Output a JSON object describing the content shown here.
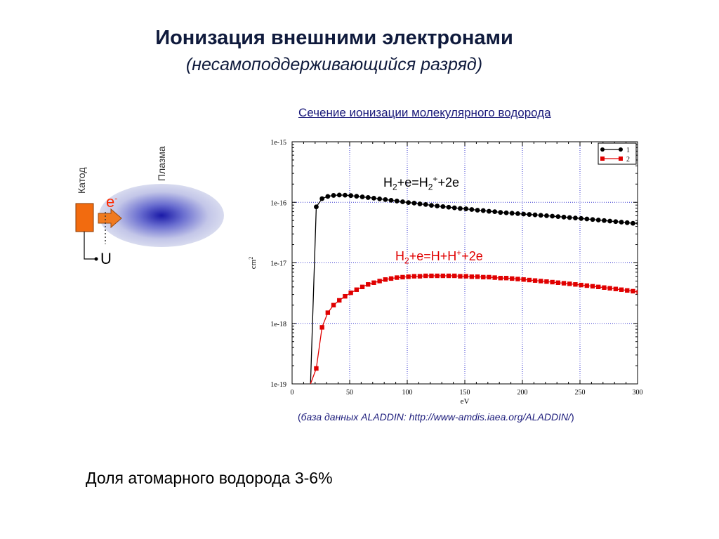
{
  "page": {
    "title": "Ионизация внешними электронами",
    "subtitle": "(несамоподдерживающийся разряд)",
    "conclusion": "Доля атомарного водорода 3-6%"
  },
  "diagram": {
    "cathode_label": "Катод",
    "plasma_label": "Плазма",
    "electron_label": "e",
    "electron_charge": "-",
    "voltage_label": "U",
    "colors": {
      "cathode": "#f26b0f",
      "plasma_center": "#1a1aa8",
      "plasma_edge": "#d4d6ec",
      "electron_text": "#ff2a00"
    }
  },
  "source": {
    "open": "(",
    "text": "база данных ALADDIN: http://www-amdis.iaea.org/ALADDIN/",
    "close": ")"
  },
  "chart_data": {
    "type": "scatter",
    "title": "Сечение ионизации молекулярного водорода",
    "xlabel": "eV",
    "ylabel": "cm",
    "ylabel_sup": "2",
    "xlim": [
      0,
      300
    ],
    "ylim": [
      1e-19,
      1e-15
    ],
    "yscale": "log",
    "grid": true,
    "legend_position": "top-right",
    "x_ticks": [
      "0",
      "50",
      "100",
      "150",
      "200",
      "250",
      "300"
    ],
    "y_ticks": [
      "1e-19",
      "1e-18",
      "1e-17",
      "1e-16",
      "1e-15"
    ],
    "reaction_labels": {
      "s1": {
        "a": "H",
        "b": "2",
        "c": "+e=H",
        "d": "2",
        "e": "+",
        "f": "+2e"
      },
      "s2": {
        "a": "H",
        "b": "2",
        "c": "+e=H+H",
        "e": "+",
        "f": "+2e"
      }
    },
    "series": [
      {
        "name": "1",
        "color": "#000000",
        "marker": "circle",
        "x": [
          16,
          21,
          26,
          31,
          36,
          41,
          46,
          51,
          56,
          61,
          66,
          71,
          76,
          81,
          86,
          91,
          96,
          101,
          106,
          111,
          116,
          121,
          126,
          131,
          136,
          141,
          146,
          151,
          156,
          161,
          166,
          171,
          176,
          181,
          186,
          191,
          196,
          201,
          206,
          211,
          216,
          221,
          226,
          231,
          236,
          241,
          246,
          251,
          256,
          261,
          266,
          271,
          276,
          281,
          286,
          291,
          296,
          301
        ],
        "y": [
          1e-19,
          8.4e-17,
          1.15e-16,
          1.25e-16,
          1.3e-16,
          1.32e-16,
          1.31e-16,
          1.29e-16,
          1.26e-16,
          1.23e-16,
          1.2e-16,
          1.17e-16,
          1.14e-16,
          1.11e-16,
          1.08e-16,
          1.05e-16,
          1.02e-16,
          9.9e-17,
          9.7e-17,
          9.4e-17,
          9.2e-17,
          8.9e-17,
          8.7e-17,
          8.5e-17,
          8.3e-17,
          8.1e-17,
          7.9e-17,
          7.8e-17,
          7.6e-17,
          7.4e-17,
          7.3e-17,
          7.1e-17,
          7e-17,
          6.8e-17,
          6.7e-17,
          6.6e-17,
          6.5e-17,
          6.4e-17,
          6.3e-17,
          6.2e-17,
          6.1e-17,
          6e-17,
          5.9e-17,
          5.8e-17,
          5.7e-17,
          5.6e-17,
          5.5e-17,
          5.4e-17,
          5.3e-17,
          5.2e-17,
          5.1e-17,
          5e-17,
          4.9e-17,
          4.8e-17,
          4.7e-17,
          4.6e-17,
          4.5e-17,
          4.5e-17
        ]
      },
      {
        "name": "2",
        "color": "#e00000",
        "marker": "square",
        "x": [
          16,
          21,
          26,
          31,
          36,
          41,
          46,
          51,
          56,
          61,
          66,
          71,
          76,
          81,
          86,
          91,
          96,
          101,
          106,
          111,
          116,
          121,
          126,
          131,
          136,
          141,
          146,
          151,
          156,
          161,
          166,
          171,
          176,
          181,
          186,
          191,
          196,
          201,
          206,
          211,
          216,
          221,
          226,
          231,
          236,
          241,
          246,
          251,
          256,
          261,
          266,
          271,
          276,
          281,
          286,
          291,
          296,
          301
        ],
        "y": [
          1e-19,
          1.8e-19,
          8.6e-19,
          1.5e-18,
          2e-18,
          2.4e-18,
          2.8e-18,
          3.2e-18,
          3.6e-18,
          4e-18,
          4.4e-18,
          4.7e-18,
          5e-18,
          5.3e-18,
          5.5e-18,
          5.7e-18,
          5.8e-18,
          5.9e-18,
          6e-18,
          6e-18,
          6.1e-18,
          6.1e-18,
          6.1e-18,
          6.1e-18,
          6.1e-18,
          6.1e-18,
          6e-18,
          6e-18,
          5.9e-18,
          5.9e-18,
          5.8e-18,
          5.8e-18,
          5.7e-18,
          5.6e-18,
          5.6e-18,
          5.5e-18,
          5.4e-18,
          5.3e-18,
          5.2e-18,
          5.1e-18,
          5e-18,
          4.9e-18,
          4.8e-18,
          4.7e-18,
          4.6e-18,
          4.5e-18,
          4.4e-18,
          4.3e-18,
          4.2e-18,
          4.1e-18,
          4e-18,
          3.9e-18,
          3.8e-18,
          3.7e-18,
          3.6e-18,
          3.5e-18,
          3.4e-18,
          3.3e-18
        ]
      }
    ]
  }
}
